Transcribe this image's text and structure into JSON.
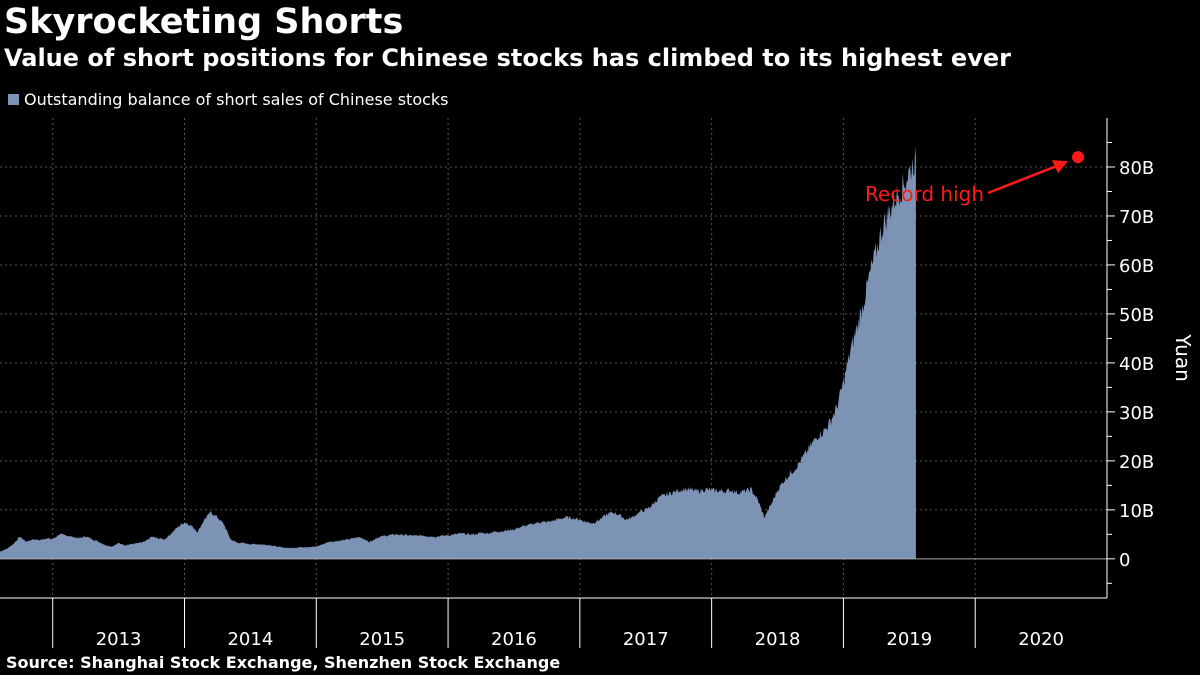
{
  "header": {
    "title": "Skyrocketing Shorts",
    "subtitle": "Value of short positions for Chinese stocks has climbed to its highest ever"
  },
  "footer": {
    "source": "Source: Shanghai Stock Exchange, Shenzhen Stock Exchange"
  },
  "colors": {
    "area": "#7d93b6",
    "annotation": "#ff1a1a",
    "grid": "#555555",
    "background": "#000000"
  },
  "chart_data": {
    "type": "area",
    "title": "Skyrocketing Shorts",
    "subtitle": "Value of short positions for Chinese stocks has climbed to its highest ever",
    "legend": [
      "Outstanding balance of short sales of Chinese stocks"
    ],
    "legend_position": "top-left",
    "ylabel": "Yuan",
    "ylim": [
      -8,
      90
    ],
    "y_ticks": [
      0,
      10,
      20,
      30,
      40,
      50,
      60,
      70,
      80
    ],
    "y_tick_labels": [
      "0",
      "10B",
      "20B",
      "30B",
      "40B",
      "50B",
      "60B",
      "70B",
      "80B"
    ],
    "xlim": [
      2012.6,
      2021.0
    ],
    "x_tick_labels": [
      "2013",
      "2014",
      "2015",
      "2016",
      "2017",
      "2018",
      "2019",
      "2020"
    ],
    "x_tick_positions": [
      2013.5,
      2014.5,
      2015.5,
      2016.5,
      2017.5,
      2018.5,
      2019.5,
      2020.5
    ],
    "x_boundaries": [
      2013,
      2014,
      2015,
      2016,
      2017,
      2018,
      2019,
      2020
    ],
    "grid": true,
    "annotation": {
      "text": "Record high",
      "x": 2020.78,
      "y": 82
    },
    "series": [
      {
        "name": "Outstanding balance of short sales of Chinese stocks",
        "x": [
          2012.6,
          2012.65,
          2012.7,
          2012.75,
          2012.8,
          2012.85,
          2012.9,
          2012.95,
          2013.0,
          2013.05,
          2013.1,
          2013.15,
          2013.2,
          2013.25,
          2013.3,
          2013.35,
          2013.4,
          2013.45,
          2013.5,
          2013.55,
          2013.6,
          2013.65,
          2013.7,
          2013.75,
          2013.8,
          2013.85,
          2013.9,
          2013.95,
          2014.0,
          2014.05,
          2014.1,
          2014.15,
          2014.2,
          2014.25,
          2014.3,
          2014.35,
          2014.4,
          2014.45,
          2014.5,
          2014.55,
          2014.6,
          2014.65,
          2014.7,
          2014.75,
          2014.8,
          2014.85,
          2014.9,
          2014.95,
          2015.0,
          2015.05,
          2015.1,
          2015.15,
          2015.2,
          2015.25,
          2015.3,
          2015.33,
          2015.36,
          2015.4,
          2015.43,
          2015.46,
          2015.5,
          2015.55,
          2015.6,
          2015.65,
          2015.7,
          2015.75,
          2015.8,
          2015.85,
          2015.9,
          2015.95,
          2016.0,
          2016.05,
          2016.1,
          2016.15,
          2016.2,
          2016.25,
          2016.3,
          2016.35,
          2016.4,
          2016.45,
          2016.5,
          2016.55,
          2016.6,
          2016.65,
          2016.7,
          2016.75,
          2016.8,
          2016.85,
          2016.9,
          2016.95,
          2017.0,
          2017.05,
          2017.1,
          2017.15,
          2017.2,
          2017.25,
          2017.3,
          2017.35,
          2017.4,
          2017.45,
          2017.5,
          2017.55,
          2017.6,
          2017.65,
          2017.7,
          2017.75,
          2017.8,
          2017.85,
          2017.9,
          2017.95,
          2018.0,
          2018.05,
          2018.1,
          2018.15,
          2018.2,
          2018.25,
          2018.3,
          2018.35,
          2018.4,
          2018.45,
          2018.5,
          2018.55,
          2018.6,
          2018.65,
          2018.7,
          2018.75,
          2018.8,
          2018.85,
          2018.9,
          2018.95,
          2019.0,
          2019.05,
          2019.1,
          2019.15,
          2019.2,
          2019.25,
          2019.3,
          2019.35,
          2019.4,
          2019.45,
          2019.5,
          2019.55,
          2019.6,
          2019.65,
          2019.7,
          2019.75,
          2019.8,
          2019.85,
          2019.9,
          2019.95,
          2020.0,
          2020.03,
          2020.06,
          2020.1,
          2020.13,
          2020.16,
          2020.2,
          2020.23,
          2020.26,
          2020.3,
          2020.33,
          2020.36,
          2020.4,
          2020.43,
          2020.46,
          2020.5,
          2020.53,
          2020.56,
          2020.6,
          2020.63,
          2020.66,
          2020.7,
          2020.73,
          2020.76,
          2020.78,
          2020.79
        ],
        "values": [
          1.5,
          2.0,
          3.0,
          4.5,
          3.5,
          4.0,
          3.8,
          4.2,
          4.0,
          5.0,
          4.8,
          4.5,
          4.2,
          4.6,
          4.0,
          3.5,
          2.8,
          2.5,
          3.2,
          2.8,
          3.0,
          3.2,
          3.5,
          4.5,
          4.2,
          4.0,
          5.2,
          6.5,
          7.5,
          6.8,
          5.5,
          8.0,
          9.5,
          8.5,
          7.0,
          4.0,
          3.3,
          3.2,
          3.0,
          3.0,
          2.9,
          2.8,
          2.5,
          2.3,
          2.2,
          2.3,
          2.4,
          2.4,
          2.5,
          3.0,
          3.5,
          3.6,
          3.8,
          4.0,
          4.3,
          4.5,
          4.0,
          3.5,
          3.8,
          4.3,
          4.6,
          4.8,
          5.0,
          4.9,
          4.8,
          4.7,
          4.8,
          4.6,
          4.5,
          4.7,
          4.8,
          5.0,
          5.2,
          5.0,
          5.0,
          5.3,
          5.2,
          5.5,
          5.6,
          5.8,
          6.0,
          6.5,
          6.8,
          7.2,
          7.5,
          7.5,
          7.8,
          8.2,
          8.5,
          8.3,
          8.0,
          7.5,
          7.3,
          8.0,
          9.0,
          9.5,
          9.0,
          8.0,
          8.5,
          9.5,
          10.0,
          11.0,
          12.5,
          13.0,
          13.5,
          14.0,
          14.3,
          14.0,
          13.8,
          14.2,
          14.0,
          13.9,
          13.8,
          14.0,
          13.5,
          13.8,
          14.2,
          12.0,
          8.5,
          11.0,
          14.0,
          16.0,
          17.5,
          19.0,
          21.0,
          23.0,
          25.0,
          26.0,
          28.0,
          31.0,
          36.0,
          42.0,
          47.0,
          52.0,
          58.0,
          63.0,
          68.0,
          71.0,
          74.0,
          76.0,
          79.0,
          82.0,
          0.0,
          0.0,
          0.0,
          0.0,
          0.0,
          0.0,
          0.0,
          0.0,
          0.0,
          0.0,
          0.0,
          0.0,
          0.0,
          0.0,
          0.0,
          0.0,
          0.0,
          0.0,
          0.0,
          0.0,
          0.0,
          0.0,
          0.0,
          0.0,
          0.0,
          0.0,
          0.0,
          0.0,
          0.0,
          0.0,
          0.0,
          0.0,
          0.0,
          0.0
        ]
      }
    ]
  }
}
